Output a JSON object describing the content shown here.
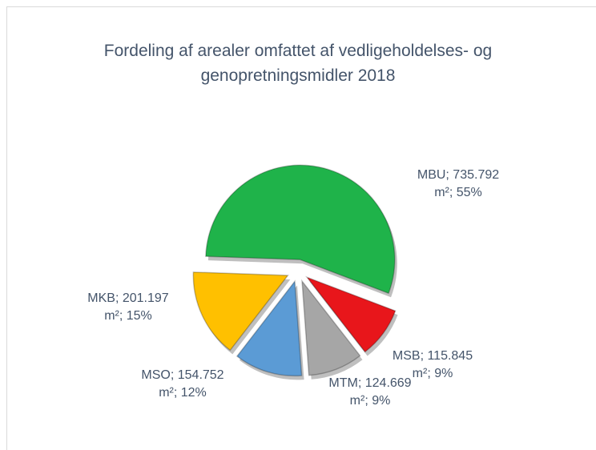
{
  "chart_data": {
    "type": "pie",
    "title": "Fordeling af arealer omfattet af vedligeholdelses- og genopretningsmidler 2018",
    "values": [
      735792,
      115845,
      124669,
      154752,
      201197
    ],
    "value_labels": [
      "MBU; 735.792 m²; 55%",
      "MSB; 115.845 m²; 9%",
      "MTM; 124.669 m²; 9%",
      "MSO; 154.752 m²; 12%",
      "MKB; 201.197 m²; 15%"
    ],
    "colors": [
      "#1fb34a",
      "#e8161b",
      "#a6a6a6",
      "#5b9bd5",
      "#ffc000"
    ]
  }
}
